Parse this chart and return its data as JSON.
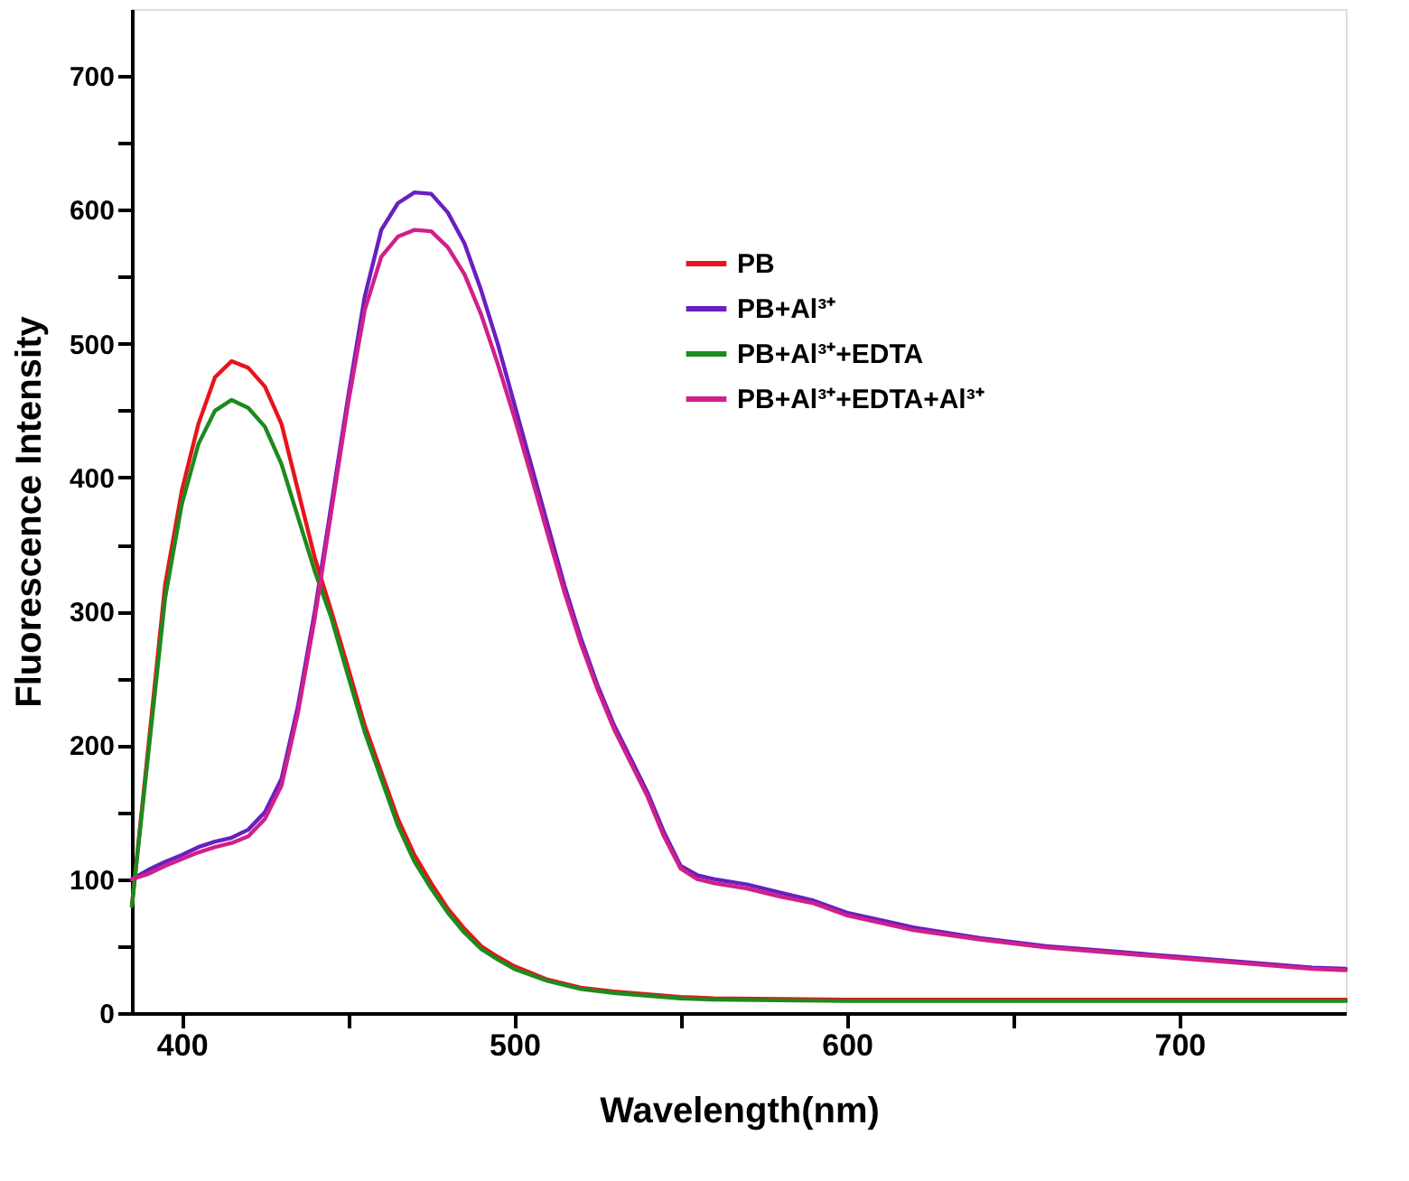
{
  "chart_data": {
    "type": "line",
    "xlabel": "Wavelength(nm)",
    "ylabel": "Fluorescence Intensity",
    "xlim": [
      385,
      750
    ],
    "ylim": [
      0,
      750
    ],
    "xticks": [
      400,
      {
        "value": 450,
        "label": null
      },
      500,
      {
        "value": 550,
        "label": null
      },
      600,
      {
        "value": 650,
        "label": null
      },
      700
    ],
    "yticks": [
      0,
      {
        "value": 50,
        "label": null
      },
      100,
      {
        "value": 150,
        "label": null
      },
      200,
      {
        "value": 250,
        "label": null
      },
      300,
      {
        "value": 350,
        "label": null
      },
      400,
      {
        "value": 450,
        "label": null
      },
      500,
      {
        "value": 550,
        "label": null
      },
      600,
      {
        "value": 650,
        "label": null
      },
      700
    ],
    "grid": false,
    "legend": "top right",
    "marker": "none",
    "line_style": "solid",
    "series": [
      {
        "name": "PB",
        "color": "#e8141b",
        "x": [
          385,
          390,
          395,
          400,
          405,
          410,
          415,
          420,
          425,
          430,
          435,
          440,
          445,
          450,
          455,
          460,
          465,
          470,
          475,
          480,
          485,
          490,
          495,
          500,
          510,
          520,
          530,
          540,
          550,
          560,
          600,
          650,
          700,
          750
        ],
        "values": [
          80,
          200,
          320,
          390,
          440,
          475,
          487,
          482,
          468,
          440,
          390,
          340,
          300,
          258,
          215,
          180,
          145,
          118,
          97,
          78,
          63,
          50,
          42,
          35,
          25,
          19,
          16,
          14,
          12,
          11,
          10,
          10,
          10,
          10
        ]
      },
      {
        "name": "PB+Al³⁺",
        "color": "#6a1fc0",
        "x": [
          385,
          390,
          395,
          400,
          405,
          410,
          415,
          420,
          425,
          430,
          435,
          440,
          445,
          450,
          455,
          460,
          465,
          470,
          475,
          480,
          485,
          490,
          495,
          500,
          505,
          510,
          515,
          520,
          525,
          530,
          535,
          540,
          545,
          550,
          555,
          560,
          570,
          580,
          590,
          600,
          620,
          640,
          660,
          680,
          700,
          720,
          740,
          750
        ],
        "values": [
          100,
          107,
          113,
          118,
          124,
          128,
          131,
          137,
          150,
          175,
          230,
          300,
          380,
          460,
          535,
          585,
          605,
          613,
          612,
          598,
          575,
          540,
          500,
          455,
          410,
          365,
          320,
          280,
          245,
          215,
          190,
          165,
          135,
          110,
          103,
          100,
          96,
          90,
          84,
          75,
          64,
          56,
          50,
          46,
          42,
          38,
          34,
          33
        ]
      },
      {
        "name": "PB+Al³⁺+EDTA",
        "color": "#1d8a1d",
        "x": [
          385,
          390,
          395,
          400,
          405,
          410,
          415,
          420,
          425,
          430,
          435,
          440,
          445,
          450,
          455,
          460,
          465,
          470,
          475,
          480,
          485,
          490,
          495,
          500,
          510,
          520,
          530,
          540,
          550,
          560,
          600,
          650,
          700,
          750
        ],
        "values": [
          80,
          195,
          310,
          380,
          425,
          450,
          458,
          452,
          438,
          410,
          370,
          330,
          295,
          252,
          210,
          175,
          140,
          113,
          93,
          75,
          60,
          48,
          40,
          33,
          24,
          18,
          15,
          13,
          11,
          10,
          9,
          9,
          9,
          9
        ]
      },
      {
        "name": "PB+Al³⁺+EDTA+Al³⁺",
        "color": "#d0208a",
        "x": [
          385,
          390,
          395,
          400,
          405,
          410,
          415,
          420,
          425,
          430,
          435,
          440,
          445,
          450,
          455,
          460,
          465,
          470,
          475,
          480,
          485,
          490,
          495,
          500,
          505,
          510,
          515,
          520,
          525,
          530,
          535,
          540,
          545,
          550,
          555,
          560,
          570,
          580,
          590,
          600,
          620,
          640,
          660,
          680,
          700,
          720,
          740,
          750
        ],
        "values": [
          100,
          104,
          110,
          115,
          120,
          124,
          127,
          132,
          145,
          170,
          225,
          295,
          375,
          455,
          525,
          565,
          580,
          585,
          584,
          572,
          552,
          522,
          485,
          445,
          402,
          358,
          315,
          276,
          242,
          212,
          187,
          162,
          132,
          108,
          100,
          97,
          93,
          87,
          82,
          73,
          62,
          55,
          49,
          45,
          41,
          37,
          33,
          32
        ]
      }
    ]
  }
}
